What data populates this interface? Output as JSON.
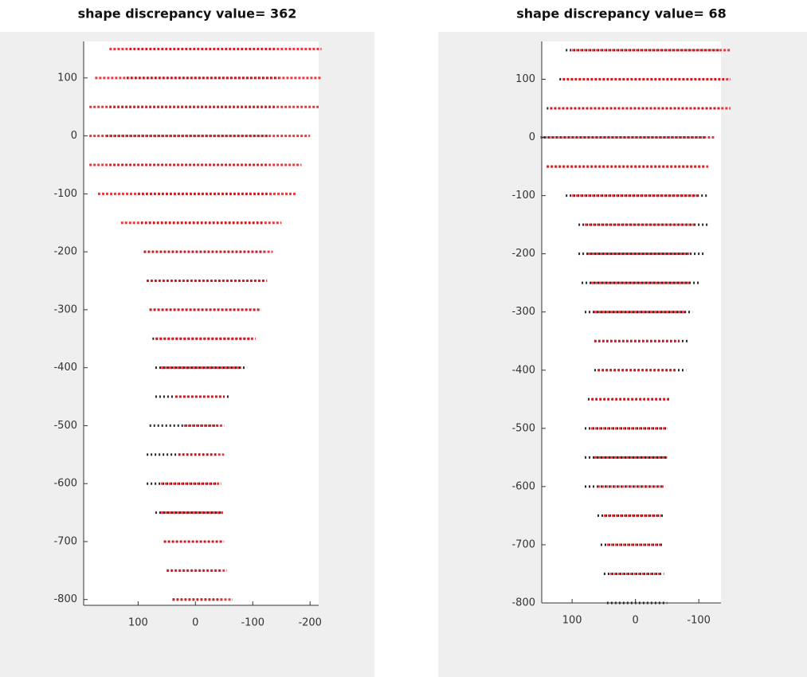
{
  "chart_data": [
    {
      "type": "slices",
      "title": "shape discrepancy value= 362",
      "xlim": [
        195,
        -215
      ],
      "ylim": [
        -810,
        163
      ],
      "xticks": [
        100,
        0,
        -100,
        -200
      ],
      "yticks": [
        100,
        0,
        -100,
        -200,
        -300,
        -400,
        -500,
        -600,
        -700,
        -800
      ],
      "y": [
        150,
        100,
        50,
        0,
        -50,
        -100,
        -150,
        -200,
        -250,
        -300,
        -350,
        -400,
        -450,
        -500,
        -550,
        -600,
        -650,
        -700,
        -750,
        -800
      ],
      "series": [
        {
          "color": "#000000",
          "x_start": [
            115,
            120,
            150,
            155,
            150,
            100,
            95,
            90,
            85,
            80,
            75,
            70,
            70,
            80,
            85,
            85,
            70,
            55,
            50,
            40
          ],
          "x_end": [
            -140,
            -145,
            -140,
            -130,
            -125,
            -125,
            -120,
            -120,
            -120,
            -110,
            -100,
            -90,
            -60,
            -40,
            -40,
            -40,
            -45,
            -45,
            -45,
            -45
          ]
        },
        {
          "color": "#e8141c",
          "x_start": [
            150,
            175,
            185,
            185,
            185,
            170,
            130,
            90,
            85,
            80,
            70,
            60,
            35,
            20,
            30,
            60,
            60,
            55,
            50,
            40
          ],
          "x_end": [
            -220,
            -220,
            -215,
            -200,
            -185,
            -175,
            -150,
            -135,
            -125,
            -115,
            -105,
            -80,
            -50,
            -50,
            -50,
            -45,
            -50,
            -50,
            -55,
            -65
          ]
        }
      ]
    },
    {
      "type": "slices",
      "title": "shape discrepancy value= 68",
      "xlim": [
        148,
        -135
      ],
      "ylim": [
        -800,
        165
      ],
      "xticks": [
        100,
        0,
        -100
      ],
      "yticks": [
        100,
        0,
        -100,
        -200,
        -300,
        -400,
        -500,
        -600,
        -700,
        -800
      ],
      "y": [
        150,
        100,
        50,
        0,
        -50,
        -100,
        -150,
        -200,
        -250,
        -300,
        -350,
        -400,
        -450,
        -500,
        -550,
        -600,
        -650,
        -700,
        -750,
        -800
      ],
      "series": [
        {
          "color": "#000000",
          "x_start": [
            110,
            120,
            140,
            145,
            140,
            110,
            90,
            90,
            85,
            80,
            65,
            65,
            75,
            80,
            80,
            80,
            60,
            55,
            50,
            45
          ],
          "x_end": [
            -135,
            -140,
            -135,
            -110,
            -110,
            -115,
            -115,
            -110,
            -100,
            -90,
            -85,
            -80,
            -55,
            -50,
            -50,
            -45,
            -45,
            -45,
            -45,
            -50
          ]
        },
        {
          "color": "#e8141c",
          "x_start": [
            100,
            115,
            135,
            150,
            140,
            100,
            80,
            75,
            70,
            65,
            65,
            60,
            70,
            70,
            65,
            60,
            50,
            45,
            40,
            null
          ],
          "x_end": [
            -150,
            -150,
            -150,
            -125,
            -115,
            -100,
            -95,
            -85,
            -85,
            -80,
            -70,
            -65,
            -55,
            -50,
            -50,
            -45,
            -40,
            -40,
            -40,
            null
          ]
        }
      ]
    }
  ]
}
